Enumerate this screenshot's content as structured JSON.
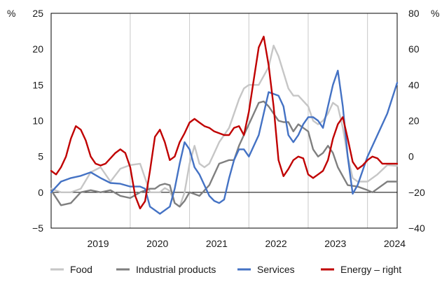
{
  "chart_data": {
    "type": "line",
    "title": "",
    "left_axis": {
      "unit": "%",
      "ylim": [
        -5,
        25
      ],
      "ticks": [
        "25",
        "20",
        "15",
        "10",
        "5",
        "0",
        "−5"
      ]
    },
    "right_axis": {
      "unit": "%",
      "ylim": [
        -40,
        80
      ],
      "ticks": [
        "80",
        "60",
        "40",
        "20",
        "0",
        "−20",
        "−40"
      ]
    },
    "x_axis": {
      "type": "date",
      "xlim": [
        "2018-09",
        "2024-07"
      ],
      "years": [
        "2019",
        "2020",
        "2021",
        "2022",
        "2023",
        "2024"
      ]
    },
    "grid": {
      "vertical": "year boundaries",
      "horizontal": false
    },
    "legend": "bottom",
    "series": [
      {
        "name": "Food",
        "axis": "left",
        "color": "#c6c6c6",
        "points": [
          [
            "2018-09",
            0.5
          ],
          [
            "2018-11",
            0.0
          ],
          [
            "2019-01",
            0.0
          ],
          [
            "2019-03",
            0.5
          ],
          [
            "2019-05",
            2.8
          ],
          [
            "2019-07",
            3.5
          ],
          [
            "2019-09",
            1.5
          ],
          [
            "2019-11",
            3.3
          ],
          [
            "2020-01",
            3.8
          ],
          [
            "2020-03",
            4.0
          ],
          [
            "2020-04",
            2.0
          ],
          [
            "2020-05",
            0.0
          ],
          [
            "2020-07",
            0.0
          ],
          [
            "2020-08",
            0.6
          ],
          [
            "2020-09",
            0.2
          ],
          [
            "2020-10",
            -1.5
          ],
          [
            "2020-11",
            -2.0
          ],
          [
            "2020-12",
            0.0
          ],
          [
            "2021-01",
            4.0
          ],
          [
            "2021-02",
            6.5
          ],
          [
            "2021-03",
            4.0
          ],
          [
            "2021-04",
            3.5
          ],
          [
            "2021-05",
            4.0
          ],
          [
            "2021-06",
            5.5
          ],
          [
            "2021-07",
            7.0
          ],
          [
            "2021-09",
            9.0
          ],
          [
            "2021-11",
            13.0
          ],
          [
            "2021-12",
            14.5
          ],
          [
            "2022-01",
            15.0
          ],
          [
            "2022-03",
            15.0
          ],
          [
            "2022-05",
            17.5
          ],
          [
            "2022-06",
            20.5
          ],
          [
            "2022-07",
            19.0
          ],
          [
            "2022-09",
            14.5
          ],
          [
            "2022-10",
            13.5
          ],
          [
            "2022-11",
            13.5
          ],
          [
            "2023-01",
            12.0
          ],
          [
            "2023-02",
            10.0
          ],
          [
            "2023-03",
            9.5
          ],
          [
            "2023-04",
            10.0
          ],
          [
            "2023-05",
            11.0
          ],
          [
            "2023-06",
            12.5
          ],
          [
            "2023-07",
            12.0
          ],
          [
            "2023-08",
            9.0
          ],
          [
            "2023-09",
            5.0
          ],
          [
            "2023-10",
            2.0
          ],
          [
            "2023-11",
            1.5
          ],
          [
            "2024-01",
            1.5
          ],
          [
            "2024-03",
            2.5
          ],
          [
            "2024-05",
            3.8
          ],
          [
            "2024-07",
            3.7
          ]
        ]
      },
      {
        "name": "Industrial products",
        "axis": "left",
        "color": "#7f7f7f",
        "points": [
          [
            "2018-09",
            0.3
          ],
          [
            "2018-11",
            -1.8
          ],
          [
            "2019-01",
            -1.5
          ],
          [
            "2019-03",
            0.0
          ],
          [
            "2019-05",
            0.3
          ],
          [
            "2019-07",
            0.0
          ],
          [
            "2019-09",
            0.3
          ],
          [
            "2019-11",
            -0.5
          ],
          [
            "2020-01",
            -0.8
          ],
          [
            "2020-03",
            0.0
          ],
          [
            "2020-05",
            0.5
          ],
          [
            "2020-06",
            0.5
          ],
          [
            "2020-07",
            1.0
          ],
          [
            "2020-08",
            1.2
          ],
          [
            "2020-09",
            1.0
          ],
          [
            "2020-10",
            -1.5
          ],
          [
            "2020-11",
            -2.0
          ],
          [
            "2020-12",
            -1.2
          ],
          [
            "2021-01",
            0.0
          ],
          [
            "2021-03",
            -0.5
          ],
          [
            "2021-05",
            1.0
          ],
          [
            "2021-07",
            4.0
          ],
          [
            "2021-09",
            4.5
          ],
          [
            "2021-10",
            4.5
          ],
          [
            "2021-11",
            6.5
          ],
          [
            "2021-12",
            8.0
          ],
          [
            "2022-01",
            9.5
          ],
          [
            "2022-03",
            12.5
          ],
          [
            "2022-04",
            12.7
          ],
          [
            "2022-05",
            12.0
          ],
          [
            "2022-07",
            10.0
          ],
          [
            "2022-08",
            9.8
          ],
          [
            "2022-09",
            9.8
          ],
          [
            "2022-10",
            8.5
          ],
          [
            "2022-11",
            9.5
          ],
          [
            "2022-12",
            9.0
          ],
          [
            "2023-01",
            8.5
          ],
          [
            "2023-02",
            6.0
          ],
          [
            "2023-03",
            5.0
          ],
          [
            "2023-04",
            5.5
          ],
          [
            "2023-05",
            6.5
          ],
          [
            "2023-06",
            5.5
          ],
          [
            "2023-07",
            3.5
          ],
          [
            "2023-09",
            1.0
          ],
          [
            "2023-11",
            0.8
          ],
          [
            "2024-01",
            0.3
          ],
          [
            "2024-02",
            0.0
          ],
          [
            "2024-03",
            0.5
          ],
          [
            "2024-05",
            1.5
          ],
          [
            "2024-07",
            1.5
          ]
        ]
      },
      {
        "name": "Services",
        "axis": "left",
        "color": "#4472c4",
        "points": [
          [
            "2018-09",
            0.0
          ],
          [
            "2018-11",
            1.5
          ],
          [
            "2019-01",
            2.0
          ],
          [
            "2019-03",
            2.3
          ],
          [
            "2019-05",
            2.8
          ],
          [
            "2019-07",
            2.0
          ],
          [
            "2019-09",
            1.3
          ],
          [
            "2019-11",
            1.2
          ],
          [
            "2020-01",
            0.8
          ],
          [
            "2020-03",
            0.8
          ],
          [
            "2020-04",
            0.5
          ],
          [
            "2020-05",
            -2.0
          ],
          [
            "2020-07",
            -3.0
          ],
          [
            "2020-09",
            -2.0
          ],
          [
            "2020-10",
            0.5
          ],
          [
            "2020-11",
            4.0
          ],
          [
            "2020-12",
            7.0
          ],
          [
            "2021-01",
            6.0
          ],
          [
            "2021-02",
            3.5
          ],
          [
            "2021-03",
            2.5
          ],
          [
            "2021-04",
            1.0
          ],
          [
            "2021-05",
            -0.5
          ],
          [
            "2021-06",
            -1.2
          ],
          [
            "2021-07",
            -1.5
          ],
          [
            "2021-08",
            -1.0
          ],
          [
            "2021-09",
            2.0
          ],
          [
            "2021-10",
            4.5
          ],
          [
            "2021-11",
            6.0
          ],
          [
            "2021-12",
            6.0
          ],
          [
            "2022-01",
            5.0
          ],
          [
            "2022-03",
            8.0
          ],
          [
            "2022-05",
            14.0
          ],
          [
            "2022-07",
            13.5
          ],
          [
            "2022-08",
            12.0
          ],
          [
            "2022-09",
            8.0
          ],
          [
            "2022-10",
            7.0
          ],
          [
            "2022-11",
            8.0
          ],
          [
            "2022-12",
            9.5
          ],
          [
            "2023-01",
            10.5
          ],
          [
            "2023-02",
            10.5
          ],
          [
            "2023-03",
            10.0
          ],
          [
            "2023-04",
            9.0
          ],
          [
            "2023-05",
            12.0
          ],
          [
            "2023-06",
            15.0
          ],
          [
            "2023-07",
            17.0
          ],
          [
            "2023-08",
            12.0
          ],
          [
            "2023-09",
            5.0
          ],
          [
            "2023-10",
            -0.2
          ],
          [
            "2023-11",
            1.0
          ],
          [
            "2024-01",
            5.0
          ],
          [
            "2024-03",
            8.0
          ],
          [
            "2024-05",
            11.0
          ],
          [
            "2024-07",
            15.3
          ]
        ]
      },
      {
        "name": "Energy – right",
        "axis": "right",
        "color": "#c00000",
        "points": [
          [
            "2018-09",
            -8
          ],
          [
            "2018-10",
            -10
          ],
          [
            "2018-11",
            -6
          ],
          [
            "2018-12",
            0
          ],
          [
            "2019-01",
            10
          ],
          [
            "2019-02",
            17
          ],
          [
            "2019-03",
            15
          ],
          [
            "2019-04",
            9
          ],
          [
            "2019-05",
            0
          ],
          [
            "2019-06",
            -4
          ],
          [
            "2019-07",
            -5
          ],
          [
            "2019-08",
            -4
          ],
          [
            "2019-09",
            -1
          ],
          [
            "2019-10",
            2
          ],
          [
            "2019-11",
            4
          ],
          [
            "2019-12",
            2
          ],
          [
            "2020-01",
            -6
          ],
          [
            "2020-02",
            -22
          ],
          [
            "2020-03",
            -29
          ],
          [
            "2020-04",
            -25
          ],
          [
            "2020-05",
            -8
          ],
          [
            "2020-06",
            11
          ],
          [
            "2020-07",
            15
          ],
          [
            "2020-08",
            8
          ],
          [
            "2020-09",
            -2
          ],
          [
            "2020-10",
            0
          ],
          [
            "2020-11",
            8
          ],
          [
            "2020-12",
            13
          ],
          [
            "2021-01",
            19
          ],
          [
            "2021-02",
            21
          ],
          [
            "2021-03",
            19
          ],
          [
            "2021-04",
            17
          ],
          [
            "2021-05",
            16
          ],
          [
            "2021-06",
            14
          ],
          [
            "2021-07",
            13
          ],
          [
            "2021-08",
            12
          ],
          [
            "2021-09",
            12
          ],
          [
            "2021-10",
            16
          ],
          [
            "2021-11",
            17
          ],
          [
            "2021-12",
            12
          ],
          [
            "2022-01",
            25
          ],
          [
            "2022-02",
            43
          ],
          [
            "2022-03",
            61
          ],
          [
            "2022-04",
            67
          ],
          [
            "2022-05",
            51
          ],
          [
            "2022-06",
            28
          ],
          [
            "2022-07",
            -2
          ],
          [
            "2022-08",
            -11
          ],
          [
            "2022-09",
            -7
          ],
          [
            "2022-10",
            -2
          ],
          [
            "2022-11",
            0
          ],
          [
            "2022-12",
            -1
          ],
          [
            "2023-01",
            -10
          ],
          [
            "2023-02",
            -12
          ],
          [
            "2023-03",
            -10
          ],
          [
            "2023-04",
            -8
          ],
          [
            "2023-05",
            -2
          ],
          [
            "2023-06",
            10
          ],
          [
            "2023-07",
            18
          ],
          [
            "2023-08",
            22
          ],
          [
            "2023-09",
            10
          ],
          [
            "2023-10",
            -3
          ],
          [
            "2023-11",
            -7
          ],
          [
            "2023-12",
            -5
          ],
          [
            "2024-01",
            -2
          ],
          [
            "2024-02",
            0
          ],
          [
            "2024-03",
            -1
          ],
          [
            "2024-04",
            -4
          ],
          [
            "2024-05",
            -4
          ],
          [
            "2024-07",
            -4
          ]
        ]
      }
    ]
  }
}
